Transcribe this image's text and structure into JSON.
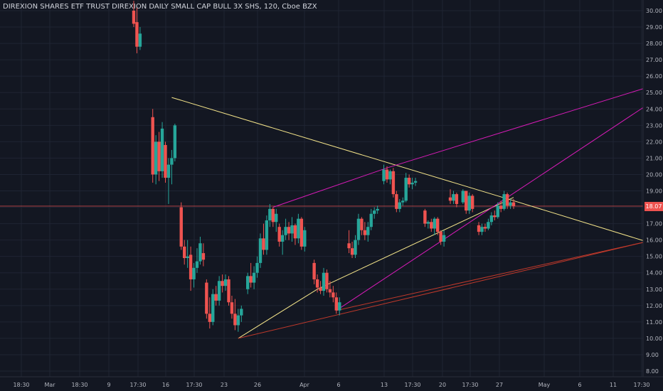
{
  "header": {
    "title": "DIREXION SHARES ETF TRUST DIREXION DAILY SMALL CAP BULL 3X SHS, 120, Cboe BZX"
  },
  "price_tag": {
    "label": "18.07"
  },
  "colors": {
    "background": "#131722",
    "grid": "#1f2433",
    "axis_text": "#b2b5be",
    "up": "#26a69a",
    "down": "#ef5350",
    "yellow_line": "#f5e58a",
    "magenta_line": "#d81bb8",
    "red_line": "#c0392b",
    "price_line": "#ef5350"
  },
  "chart_data": {
    "type": "candlestick",
    "title": "DIREXION SHARES ETF TRUST DIREXION DAILY SMALL CAP BULL 3X SHS, 120, Cboe BZX",
    "ylim": [
      7.6,
      30.5
    ],
    "y_ticks": [
      "8.00",
      "9.00",
      "10.00",
      "11.00",
      "12.00",
      "13.00",
      "14.00",
      "15.00",
      "16.00",
      "17.00",
      "18.00",
      "19.00",
      "20.00",
      "21.00",
      "22.00",
      "23.00",
      "24.00",
      "25.00",
      "26.00",
      "27.00",
      "28.00",
      "29.00",
      "30.00"
    ],
    "x_ticks": [
      "18:30",
      "Mar",
      "18:30",
      "9",
      "17:30",
      "16",
      "17:30",
      "23",
      "26",
      "Apr",
      "6",
      "13",
      "17:30",
      "20",
      "17:30",
      "27",
      "May",
      "6",
      "11",
      "17:30"
    ],
    "last_price": 18.07,
    "candles": [
      {
        "t": 0.0,
        "o": 30.0,
        "h": 30.6,
        "l": 29.0,
        "c": 29.2
      },
      {
        "t": 0.5,
        "o": 29.3,
        "h": 30.2,
        "l": 27.4,
        "c": 27.8
      },
      {
        "t": 1.0,
        "o": 27.8,
        "h": 29.0,
        "l": 27.6,
        "c": 28.6
      },
      {
        "t": 3.0,
        "o": 23.5,
        "h": 24.0,
        "l": 19.5,
        "c": 20.0
      },
      {
        "t": 3.5,
        "o": 20.0,
        "h": 22.4,
        "l": 19.4,
        "c": 22.0
      },
      {
        "t": 4.0,
        "o": 22.0,
        "h": 22.6,
        "l": 19.6,
        "c": 20.2
      },
      {
        "t": 4.5,
        "o": 20.2,
        "h": 23.2,
        "l": 19.8,
        "c": 22.8
      },
      {
        "t": 5.0,
        "o": 21.8,
        "h": 22.0,
        "l": 19.5,
        "c": 19.8
      },
      {
        "t": 5.5,
        "o": 19.8,
        "h": 21.0,
        "l": 18.2,
        "c": 20.6
      },
      {
        "t": 6.0,
        "o": 20.6,
        "h": 21.5,
        "l": 19.4,
        "c": 21.0
      },
      {
        "t": 6.5,
        "o": 21.0,
        "h": 23.1,
        "l": 20.8,
        "c": 23.0
      },
      {
        "t": 7.5,
        "o": 18.0,
        "h": 18.3,
        "l": 15.4,
        "c": 15.6
      },
      {
        "t": 8.0,
        "o": 15.6,
        "h": 16.0,
        "l": 14.5,
        "c": 14.9
      },
      {
        "t": 8.5,
        "o": 14.9,
        "h": 16.0,
        "l": 14.3,
        "c": 15.0
      },
      {
        "t": 9.0,
        "o": 15.1,
        "h": 15.6,
        "l": 12.9,
        "c": 13.6
      },
      {
        "t": 9.5,
        "o": 13.6,
        "h": 14.6,
        "l": 13.1,
        "c": 14.3
      },
      {
        "t": 10.0,
        "o": 14.3,
        "h": 15.5,
        "l": 14.0,
        "c": 14.7
      },
      {
        "t": 10.5,
        "o": 14.7,
        "h": 16.2,
        "l": 14.5,
        "c": 15.8
      },
      {
        "t": 11.0,
        "o": 15.2,
        "h": 15.8,
        "l": 14.4,
        "c": 14.8
      },
      {
        "t": 11.5,
        "o": 13.4,
        "h": 13.6,
        "l": 11.2,
        "c": 11.5
      },
      {
        "t": 12.0,
        "o": 11.5,
        "h": 12.5,
        "l": 10.6,
        "c": 11.0
      },
      {
        "t": 12.5,
        "o": 11.0,
        "h": 13.0,
        "l": 10.8,
        "c": 12.7
      },
      {
        "t": 13.0,
        "o": 12.7,
        "h": 13.2,
        "l": 12.0,
        "c": 12.3
      },
      {
        "t": 13.5,
        "o": 12.3,
        "h": 13.8,
        "l": 12.0,
        "c": 13.5
      },
      {
        "t": 14.0,
        "o": 13.5,
        "h": 13.9,
        "l": 12.8,
        "c": 13.2
      },
      {
        "t": 14.5,
        "o": 13.2,
        "h": 13.9,
        "l": 12.9,
        "c": 13.6
      },
      {
        "t": 15.0,
        "o": 13.6,
        "h": 13.8,
        "l": 12.0,
        "c": 12.2
      },
      {
        "t": 15.5,
        "o": 12.2,
        "h": 12.6,
        "l": 11.2,
        "c": 11.5
      },
      {
        "t": 16.0,
        "o": 11.5,
        "h": 12.4,
        "l": 10.5,
        "c": 10.8
      },
      {
        "t": 16.5,
        "o": 10.8,
        "h": 11.8,
        "l": 10.4,
        "c": 11.4
      },
      {
        "t": 17.0,
        "o": 11.4,
        "h": 12.0,
        "l": 11.0,
        "c": 11.8
      },
      {
        "t": 18.0,
        "o": 13.0,
        "h": 14.0,
        "l": 12.7,
        "c": 13.8
      },
      {
        "t": 18.5,
        "o": 13.8,
        "h": 14.6,
        "l": 13.1,
        "c": 13.4
      },
      {
        "t": 19.0,
        "o": 13.4,
        "h": 14.4,
        "l": 13.0,
        "c": 14.0
      },
      {
        "t": 19.5,
        "o": 14.0,
        "h": 15.0,
        "l": 13.7,
        "c": 14.6
      },
      {
        "t": 20.0,
        "o": 14.6,
        "h": 16.4,
        "l": 14.3,
        "c": 16.1
      },
      {
        "t": 20.5,
        "o": 16.1,
        "h": 17.0,
        "l": 15.1,
        "c": 15.4
      },
      {
        "t": 21.0,
        "o": 15.4,
        "h": 17.5,
        "l": 15.1,
        "c": 17.2
      },
      {
        "t": 21.5,
        "o": 17.2,
        "h": 18.2,
        "l": 16.8,
        "c": 17.9
      },
      {
        "t": 22.0,
        "o": 17.9,
        "h": 18.0,
        "l": 16.8,
        "c": 17.1
      },
      {
        "t": 22.5,
        "o": 17.1,
        "h": 17.9,
        "l": 16.5,
        "c": 17.6
      },
      {
        "t": 23.0,
        "o": 16.8,
        "h": 17.0,
        "l": 15.6,
        "c": 15.9
      },
      {
        "t": 23.5,
        "o": 15.9,
        "h": 16.6,
        "l": 15.1,
        "c": 16.3
      },
      {
        "t": 24.0,
        "o": 16.3,
        "h": 17.3,
        "l": 16.0,
        "c": 16.8
      },
      {
        "t": 24.5,
        "o": 16.8,
        "h": 17.1,
        "l": 16.0,
        "c": 16.4
      },
      {
        "t": 25.0,
        "o": 16.4,
        "h": 17.4,
        "l": 15.9,
        "c": 16.9
      },
      {
        "t": 25.5,
        "o": 16.9,
        "h": 17.0,
        "l": 15.7,
        "c": 16.1
      },
      {
        "t": 26.0,
        "o": 16.1,
        "h": 17.6,
        "l": 15.8,
        "c": 17.3
      },
      {
        "t": 26.5,
        "o": 17.3,
        "h": 17.4,
        "l": 15.4,
        "c": 15.6
      },
      {
        "t": 27.0,
        "o": 15.6,
        "h": 16.8,
        "l": 15.3,
        "c": 16.6
      },
      {
        "t": 28.5,
        "o": 14.6,
        "h": 14.8,
        "l": 13.3,
        "c": 13.6
      },
      {
        "t": 29.0,
        "o": 13.6,
        "h": 13.9,
        "l": 12.8,
        "c": 13.1
      },
      {
        "t": 29.5,
        "o": 13.1,
        "h": 13.5,
        "l": 12.7,
        "c": 12.9
      },
      {
        "t": 30.0,
        "o": 12.9,
        "h": 14.3,
        "l": 12.6,
        "c": 14.0
      },
      {
        "t": 30.5,
        "o": 14.0,
        "h": 14.2,
        "l": 12.8,
        "c": 13.0
      },
      {
        "t": 31.0,
        "o": 13.0,
        "h": 13.5,
        "l": 12.5,
        "c": 12.8
      },
      {
        "t": 31.5,
        "o": 12.8,
        "h": 13.2,
        "l": 12.2,
        "c": 12.5
      },
      {
        "t": 32.0,
        "o": 12.5,
        "h": 12.8,
        "l": 11.5,
        "c": 11.7
      },
      {
        "t": 32.5,
        "o": 11.7,
        "h": 12.5,
        "l": 11.4,
        "c": 12.2
      },
      {
        "t": 34.0,
        "o": 15.8,
        "h": 16.6,
        "l": 15.2,
        "c": 15.5
      },
      {
        "t": 34.5,
        "o": 15.5,
        "h": 15.9,
        "l": 14.9,
        "c": 15.1
      },
      {
        "t": 35.0,
        "o": 15.1,
        "h": 16.3,
        "l": 14.9,
        "c": 16.0
      },
      {
        "t": 35.5,
        "o": 16.0,
        "h": 17.6,
        "l": 15.7,
        "c": 17.3
      },
      {
        "t": 36.0,
        "o": 17.3,
        "h": 17.4,
        "l": 16.3,
        "c": 16.6
      },
      {
        "t": 36.5,
        "o": 16.6,
        "h": 17.1,
        "l": 16.0,
        "c": 16.3
      },
      {
        "t": 37.0,
        "o": 16.3,
        "h": 17.1,
        "l": 15.9,
        "c": 16.8
      },
      {
        "t": 37.5,
        "o": 16.8,
        "h": 17.9,
        "l": 16.6,
        "c": 17.6
      },
      {
        "t": 38.0,
        "o": 17.6,
        "h": 18.0,
        "l": 17.3,
        "c": 17.8
      },
      {
        "t": 38.5,
        "o": 17.8,
        "h": 18.1,
        "l": 17.6,
        "c": 17.9
      },
      {
        "t": 39.5,
        "o": 19.6,
        "h": 20.6,
        "l": 19.4,
        "c": 20.3
      },
      {
        "t": 40.0,
        "o": 20.3,
        "h": 20.5,
        "l": 19.5,
        "c": 19.7
      },
      {
        "t": 40.5,
        "o": 19.7,
        "h": 20.3,
        "l": 19.4,
        "c": 20.2
      },
      {
        "t": 41.0,
        "o": 20.2,
        "h": 20.4,
        "l": 18.6,
        "c": 18.8
      },
      {
        "t": 41.5,
        "o": 18.8,
        "h": 19.0,
        "l": 17.7,
        "c": 17.9
      },
      {
        "t": 42.0,
        "o": 17.9,
        "h": 18.5,
        "l": 17.7,
        "c": 18.3
      },
      {
        "t": 42.5,
        "o": 18.3,
        "h": 18.6,
        "l": 18.1,
        "c": 18.4
      },
      {
        "t": 43.0,
        "o": 18.4,
        "h": 20.1,
        "l": 18.3,
        "c": 19.8
      },
      {
        "t": 43.5,
        "o": 19.8,
        "h": 20.0,
        "l": 19.2,
        "c": 19.4
      },
      {
        "t": 44.0,
        "o": 19.4,
        "h": 19.8,
        "l": 19.1,
        "c": 19.5
      },
      {
        "t": 44.5,
        "o": 19.5,
        "h": 19.8,
        "l": 19.3,
        "c": 19.6
      },
      {
        "t": 46.0,
        "o": 17.8,
        "h": 17.9,
        "l": 16.8,
        "c": 17.0
      },
      {
        "t": 46.5,
        "o": 17.0,
        "h": 17.2,
        "l": 16.7,
        "c": 17.1
      },
      {
        "t": 47.0,
        "o": 17.1,
        "h": 17.3,
        "l": 16.5,
        "c": 16.7
      },
      {
        "t": 47.5,
        "o": 16.7,
        "h": 17.4,
        "l": 16.3,
        "c": 17.3
      },
      {
        "t": 48.0,
        "o": 17.3,
        "h": 17.4,
        "l": 16.3,
        "c": 16.5
      },
      {
        "t": 48.5,
        "o": 16.5,
        "h": 16.6,
        "l": 15.7,
        "c": 15.9
      },
      {
        "t": 49.0,
        "o": 15.9,
        "h": 16.6,
        "l": 15.6,
        "c": 16.3
      },
      {
        "t": 50.0,
        "o": 18.6,
        "h": 19.1,
        "l": 18.2,
        "c": 18.4
      },
      {
        "t": 50.5,
        "o": 18.4,
        "h": 19.0,
        "l": 18.2,
        "c": 18.8
      },
      {
        "t": 51.0,
        "o": 18.8,
        "h": 18.9,
        "l": 18.0,
        "c": 18.2
      },
      {
        "t": 52.0,
        "o": 18.3,
        "h": 19.1,
        "l": 18.2,
        "c": 19.0
      },
      {
        "t": 52.5,
        "o": 19.0,
        "h": 19.0,
        "l": 17.6,
        "c": 17.8
      },
      {
        "t": 53.0,
        "o": 17.8,
        "h": 18.9,
        "l": 17.6,
        "c": 18.7
      },
      {
        "t": 53.5,
        "o": 18.7,
        "h": 18.8,
        "l": 17.7,
        "c": 17.9
      },
      {
        "t": 54.5,
        "o": 16.9,
        "h": 17.1,
        "l": 16.3,
        "c": 16.5
      },
      {
        "t": 55.0,
        "o": 16.5,
        "h": 17.0,
        "l": 16.3,
        "c": 16.8
      },
      {
        "t": 55.5,
        "o": 16.8,
        "h": 17.0,
        "l": 16.5,
        "c": 16.7
      },
      {
        "t": 56.0,
        "o": 16.7,
        "h": 17.3,
        "l": 16.6,
        "c": 17.1
      },
      {
        "t": 56.5,
        "o": 17.1,
        "h": 17.7,
        "l": 16.9,
        "c": 17.5
      },
      {
        "t": 57.0,
        "o": 17.5,
        "h": 17.8,
        "l": 17.2,
        "c": 17.4
      },
      {
        "t": 57.5,
        "o": 17.4,
        "h": 18.3,
        "l": 17.3,
        "c": 18.1
      },
      {
        "t": 58.0,
        "o": 18.1,
        "h": 18.4,
        "l": 17.7,
        "c": 17.9
      },
      {
        "t": 58.5,
        "o": 17.9,
        "h": 19.0,
        "l": 17.8,
        "c": 18.8
      },
      {
        "t": 59.0,
        "o": 18.8,
        "h": 18.9,
        "l": 17.9,
        "c": 18.1
      },
      {
        "t": 59.5,
        "o": 18.1,
        "h": 18.5,
        "l": 17.9,
        "c": 18.3
      },
      {
        "t": 60.0,
        "o": 18.3,
        "h": 18.5,
        "l": 17.9,
        "c": 18.07
      }
    ],
    "trendlines": [
      {
        "color_key": "yellow_line",
        "points": [
          [
            6.0,
            24.7
          ],
          [
            60.0,
            18.4
          ],
          [
            81.0,
            15.9
          ]
        ]
      },
      {
        "color_key": "yellow_line",
        "points": [
          [
            16.5,
            10.0
          ],
          [
            29.0,
            13.0
          ],
          [
            60.0,
            18.6
          ]
        ]
      },
      {
        "color_key": "magenta_line",
        "points": [
          [
            22.0,
            18.0
          ],
          [
            40.0,
            20.4
          ],
          [
            86.0,
            25.9
          ]
        ]
      },
      {
        "color_key": "magenta_line",
        "points": [
          [
            32.0,
            11.7
          ],
          [
            86.0,
            25.5
          ]
        ]
      },
      {
        "color_key": "red_line",
        "points": [
          [
            16.5,
            10.0
          ],
          [
            81.0,
            15.9
          ]
        ]
      },
      {
        "color_key": "red_line",
        "points": [
          [
            32.0,
            11.7
          ],
          [
            81.0,
            15.9
          ]
        ]
      }
    ]
  }
}
